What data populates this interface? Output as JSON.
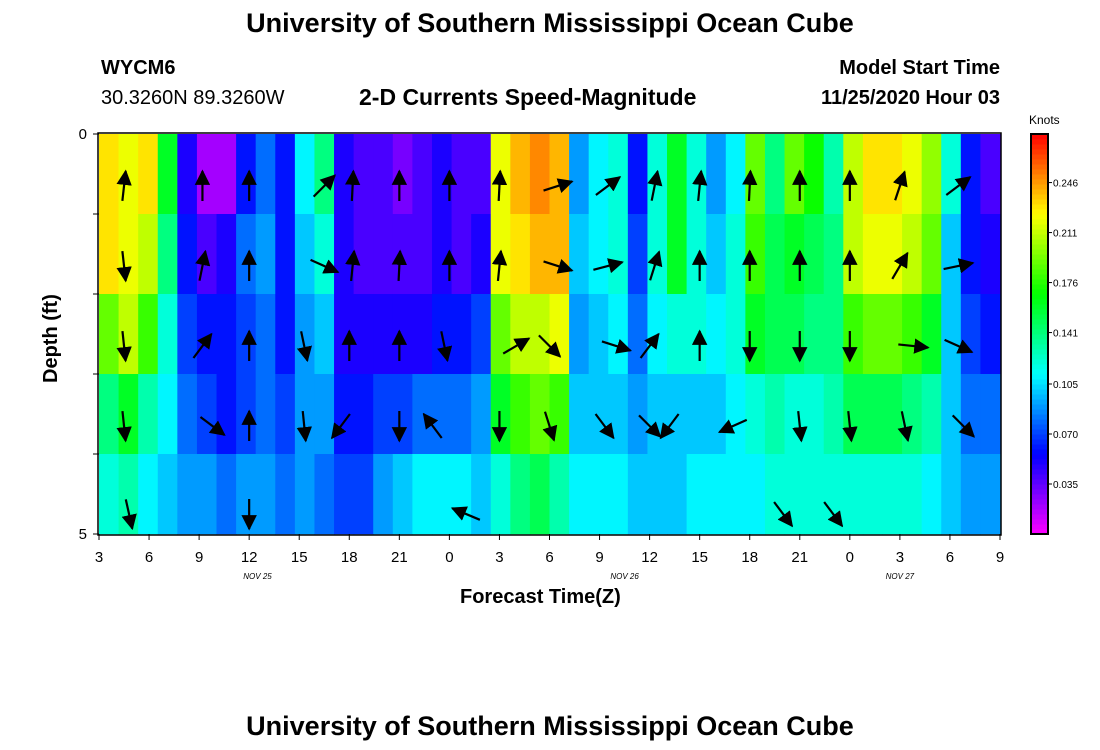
{
  "title_top": "University of Southern Mississippi Ocean Cube",
  "title_bottom": "University of Southern Mississippi Ocean Cube",
  "station": {
    "id": "WYCM6",
    "coords": "30.3260N 89.3260W"
  },
  "model": {
    "label": "Model Start Time",
    "time": "11/25/2020 Hour 03"
  },
  "chart_data": {
    "type": "heatmap",
    "title": "2-D Currents Speed-Magnitude",
    "xlabel": "Forecast Time(Z)",
    "ylabel": "Depth (ft)",
    "x_range_hours": [
      0,
      54
    ],
    "y_range": [
      0,
      5
    ],
    "x_tick_labels": [
      "3",
      "6",
      "9",
      "12",
      "15",
      "18",
      "21",
      "0",
      "3",
      "6",
      "9",
      "12",
      "15",
      "18",
      "21",
      "0",
      "3",
      "6",
      "9"
    ],
    "y_tick_labels": [
      "0",
      "",
      "",
      "",
      "",
      "5"
    ],
    "date_labels": [
      "NOV 25",
      "NOV 26",
      "NOV 27"
    ],
    "colorbar": {
      "unit": "Knots",
      "min": 0.0,
      "max": 0.28,
      "tick_labels": [
        "0.035",
        "0.070",
        "0.105",
        "0.141",
        "0.176",
        "0.211",
        "0.246"
      ],
      "tick_values": [
        0.035,
        0.07,
        0.105,
        0.141,
        0.176,
        0.211,
        0.246
      ]
    },
    "depth_bands": [
      0,
      1,
      2,
      3,
      4,
      5
    ],
    "speed_by_band": [
      [
        0.23,
        0.22,
        0.23,
        0.16,
        0.05,
        0.02,
        0.02,
        0.06,
        0.08,
        0.06,
        0.11,
        0.14,
        0.05,
        0.04,
        0.04,
        0.03,
        0.04,
        0.05,
        0.04,
        0.04,
        0.22,
        0.24,
        0.25,
        0.24,
        0.09,
        0.11,
        0.12,
        0.06,
        0.12,
        0.16,
        0.12,
        0.09,
        0.11,
        0.19,
        0.14,
        0.19,
        0.17,
        0.13,
        0.21,
        0.23,
        0.23,
        0.22,
        0.2,
        0.12,
        0.06,
        0.04
      ],
      [
        0.23,
        0.22,
        0.21,
        0.14,
        0.06,
        0.04,
        0.05,
        0.08,
        0.09,
        0.06,
        0.1,
        0.12,
        0.05,
        0.04,
        0.04,
        0.04,
        0.04,
        0.05,
        0.04,
        0.05,
        0.22,
        0.23,
        0.24,
        0.24,
        0.1,
        0.11,
        0.12,
        0.07,
        0.12,
        0.16,
        0.12,
        0.1,
        0.12,
        0.18,
        0.15,
        0.16,
        0.15,
        0.14,
        0.21,
        0.22,
        0.22,
        0.21,
        0.19,
        0.1,
        0.06,
        0.05
      ],
      [
        0.19,
        0.21,
        0.18,
        0.12,
        0.07,
        0.06,
        0.06,
        0.07,
        0.08,
        0.06,
        0.09,
        0.1,
        0.05,
        0.05,
        0.05,
        0.05,
        0.05,
        0.06,
        0.06,
        0.07,
        0.19,
        0.21,
        0.21,
        0.22,
        0.09,
        0.1,
        0.11,
        0.08,
        0.11,
        0.12,
        0.12,
        0.11,
        0.12,
        0.16,
        0.15,
        0.15,
        0.14,
        0.14,
        0.18,
        0.19,
        0.19,
        0.18,
        0.16,
        0.1,
        0.07,
        0.06
      ],
      [
        0.14,
        0.16,
        0.13,
        0.11,
        0.08,
        0.07,
        0.06,
        0.07,
        0.08,
        0.07,
        0.09,
        0.09,
        0.06,
        0.06,
        0.07,
        0.07,
        0.08,
        0.08,
        0.08,
        0.09,
        0.16,
        0.18,
        0.19,
        0.18,
        0.1,
        0.1,
        0.1,
        0.09,
        0.1,
        0.1,
        0.1,
        0.1,
        0.11,
        0.12,
        0.13,
        0.12,
        0.12,
        0.13,
        0.15,
        0.15,
        0.15,
        0.14,
        0.13,
        0.1,
        0.08,
        0.08
      ],
      [
        0.12,
        0.13,
        0.11,
        0.1,
        0.09,
        0.09,
        0.08,
        0.09,
        0.09,
        0.08,
        0.09,
        0.08,
        0.07,
        0.07,
        0.09,
        0.1,
        0.11,
        0.11,
        0.11,
        0.1,
        0.12,
        0.14,
        0.15,
        0.13,
        0.11,
        0.11,
        0.11,
        0.1,
        0.1,
        0.1,
        0.11,
        0.11,
        0.11,
        0.11,
        0.12,
        0.12,
        0.12,
        0.12,
        0.12,
        0.12,
        0.12,
        0.12,
        0.11,
        0.1,
        0.09,
        0.09
      ]
    ],
    "vectors": [
      {
        "t": 1.5,
        "depth": 0.65,
        "u": 0.1,
        "v": 0.9
      },
      {
        "t": 6.2,
        "depth": 0.65,
        "u": 0.0,
        "v": 1.0
      },
      {
        "t": 9.0,
        "depth": 0.65,
        "u": 0.0,
        "v": 1.0
      },
      {
        "t": 13.5,
        "depth": 0.65,
        "u": 0.7,
        "v": 0.7
      },
      {
        "t": 15.2,
        "depth": 0.65,
        "u": 0.05,
        "v": 1.0
      },
      {
        "t": 18.0,
        "depth": 0.65,
        "u": 0.0,
        "v": 1.0
      },
      {
        "t": 21.0,
        "depth": 0.65,
        "u": 0.0,
        "v": 1.0
      },
      {
        "t": 24.0,
        "depth": 0.65,
        "u": 0.05,
        "v": 1.0
      },
      {
        "t": 27.5,
        "depth": 0.65,
        "u": 0.95,
        "v": 0.3
      },
      {
        "t": 30.5,
        "depth": 0.65,
        "u": 0.8,
        "v": 0.6
      },
      {
        "t": 33.3,
        "depth": 0.65,
        "u": 0.2,
        "v": 1.0
      },
      {
        "t": 36.0,
        "depth": 0.65,
        "u": 0.1,
        "v": 1.0
      },
      {
        "t": 39.0,
        "depth": 0.65,
        "u": 0.05,
        "v": 1.0
      },
      {
        "t": 42.0,
        "depth": 0.65,
        "u": 0.0,
        "v": 1.0
      },
      {
        "t": 45.0,
        "depth": 0.65,
        "u": 0.0,
        "v": 1.0
      },
      {
        "t": 48.0,
        "depth": 0.65,
        "u": 0.3,
        "v": 0.9
      },
      {
        "t": 51.5,
        "depth": 0.65,
        "u": 0.8,
        "v": 0.6
      },
      {
        "t": 1.5,
        "depth": 1.65,
        "u": 0.1,
        "v": -0.9
      },
      {
        "t": 6.2,
        "depth": 1.65,
        "u": 0.2,
        "v": 1.0
      },
      {
        "t": 9.0,
        "depth": 1.65,
        "u": 0.0,
        "v": 1.0
      },
      {
        "t": 13.5,
        "depth": 1.65,
        "u": 0.9,
        "v": -0.4
      },
      {
        "t": 15.2,
        "depth": 1.65,
        "u": 0.1,
        "v": 1.0
      },
      {
        "t": 18.0,
        "depth": 1.65,
        "u": 0.05,
        "v": 1.0
      },
      {
        "t": 21.0,
        "depth": 1.65,
        "u": 0.0,
        "v": 1.0
      },
      {
        "t": 24.0,
        "depth": 1.65,
        "u": 0.1,
        "v": 1.0
      },
      {
        "t": 27.5,
        "depth": 1.65,
        "u": 0.95,
        "v": -0.3
      },
      {
        "t": 30.5,
        "depth": 1.65,
        "u": 0.95,
        "v": 0.25
      },
      {
        "t": 33.3,
        "depth": 1.65,
        "u": 0.3,
        "v": 0.95
      },
      {
        "t": 36.0,
        "depth": 1.65,
        "u": 0.0,
        "v": 1.0
      },
      {
        "t": 39.0,
        "depth": 1.65,
        "u": 0.0,
        "v": 1.0
      },
      {
        "t": 42.0,
        "depth": 1.65,
        "u": 0.0,
        "v": 1.0
      },
      {
        "t": 45.0,
        "depth": 1.65,
        "u": 0.0,
        "v": 1.0
      },
      {
        "t": 48.0,
        "depth": 1.65,
        "u": 0.5,
        "v": 0.85
      },
      {
        "t": 51.5,
        "depth": 1.65,
        "u": 0.95,
        "v": 0.2
      },
      {
        "t": 1.5,
        "depth": 2.65,
        "u": 0.1,
        "v": -0.95
      },
      {
        "t": 6.2,
        "depth": 2.65,
        "u": 0.6,
        "v": 0.8
      },
      {
        "t": 9.0,
        "depth": 2.65,
        "u": 0.0,
        "v": 1.0
      },
      {
        "t": 12.3,
        "depth": 2.65,
        "u": 0.2,
        "v": -0.95
      },
      {
        "t": 15.0,
        "depth": 2.65,
        "u": 0.0,
        "v": 1.0
      },
      {
        "t": 18.0,
        "depth": 2.65,
        "u": 0.0,
        "v": 1.0
      },
      {
        "t": 20.7,
        "depth": 2.65,
        "u": 0.2,
        "v": -0.95
      },
      {
        "t": 25.0,
        "depth": 2.65,
        "u": 0.85,
        "v": 0.5
      },
      {
        "t": 27.0,
        "depth": 2.65,
        "u": 0.7,
        "v": -0.7
      },
      {
        "t": 31.0,
        "depth": 2.65,
        "u": 0.95,
        "v": -0.3
      },
      {
        "t": 33.0,
        "depth": 2.65,
        "u": 0.6,
        "v": 0.8
      },
      {
        "t": 36.0,
        "depth": 2.65,
        "u": 0.0,
        "v": 1.0
      },
      {
        "t": 39.0,
        "depth": 2.65,
        "u": 0.0,
        "v": -1.0
      },
      {
        "t": 42.0,
        "depth": 2.65,
        "u": 0.0,
        "v": -1.0
      },
      {
        "t": 45.0,
        "depth": 2.65,
        "u": 0.0,
        "v": -1.0
      },
      {
        "t": 48.8,
        "depth": 2.65,
        "u": 0.97,
        "v": -0.1
      },
      {
        "t": 51.5,
        "depth": 2.65,
        "u": 0.9,
        "v": -0.4
      },
      {
        "t": 1.5,
        "depth": 3.65,
        "u": 0.1,
        "v": -0.95
      },
      {
        "t": 6.8,
        "depth": 3.65,
        "u": 0.8,
        "v": -0.6
      },
      {
        "t": 9.0,
        "depth": 3.65,
        "u": 0.0,
        "v": 1.0
      },
      {
        "t": 12.3,
        "depth": 3.65,
        "u": 0.1,
        "v": -1.0
      },
      {
        "t": 14.5,
        "depth": 3.65,
        "u": -0.6,
        "v": -0.8
      },
      {
        "t": 18.0,
        "depth": 3.65,
        "u": 0.0,
        "v": -1.0
      },
      {
        "t": 20.0,
        "depth": 3.65,
        "u": -0.6,
        "v": 0.8
      },
      {
        "t": 24.0,
        "depth": 3.65,
        "u": 0.0,
        "v": -1.0
      },
      {
        "t": 27.0,
        "depth": 3.65,
        "u": 0.3,
        "v": -0.95
      },
      {
        "t": 30.3,
        "depth": 3.65,
        "u": 0.6,
        "v": -0.8
      },
      {
        "t": 33.0,
        "depth": 3.65,
        "u": 0.7,
        "v": -0.7
      },
      {
        "t": 34.2,
        "depth": 3.65,
        "u": -0.6,
        "v": -0.8
      },
      {
        "t": 38.0,
        "depth": 3.65,
        "u": -0.9,
        "v": -0.4
      },
      {
        "t": 42.0,
        "depth": 3.65,
        "u": 0.1,
        "v": -0.95
      },
      {
        "t": 45.0,
        "depth": 3.65,
        "u": 0.1,
        "v": -0.95
      },
      {
        "t": 48.3,
        "depth": 3.65,
        "u": 0.2,
        "v": -0.95
      },
      {
        "t": 51.8,
        "depth": 3.65,
        "u": 0.7,
        "v": -0.7
      },
      {
        "t": 1.8,
        "depth": 4.75,
        "u": 0.2,
        "v": -0.9
      },
      {
        "t": 9.0,
        "depth": 4.75,
        "u": 0.0,
        "v": -0.9
      },
      {
        "t": 22.0,
        "depth": 4.75,
        "u": -0.95,
        "v": 0.4
      },
      {
        "t": 41.0,
        "depth": 4.75,
        "u": 0.6,
        "v": -0.8
      },
      {
        "t": 44.0,
        "depth": 4.75,
        "u": 0.6,
        "v": -0.8
      }
    ]
  }
}
